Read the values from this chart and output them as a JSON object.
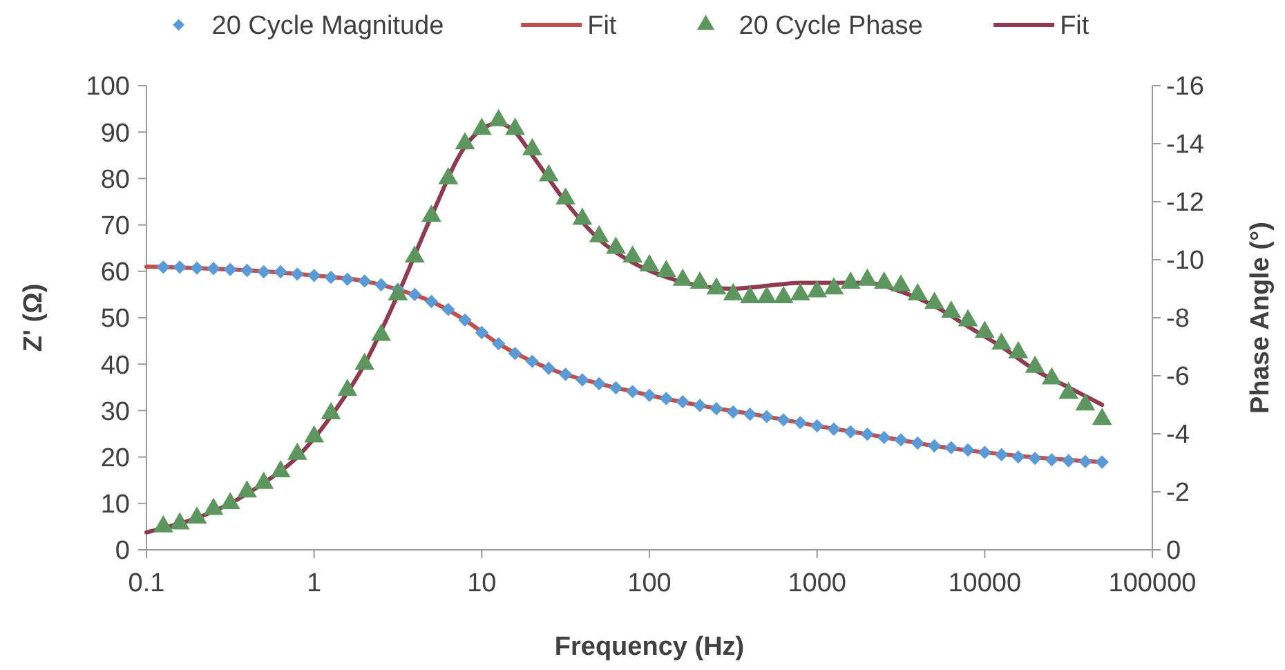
{
  "chart_data": {
    "type": "scatter",
    "xlabel": "Frequency (Hz)",
    "ylabel": "Z' (Ω)",
    "y2label": "Phase Angle (°)",
    "log": "x",
    "grid": false,
    "legend": "top",
    "xlim": [
      0.1,
      100000
    ],
    "xticks": [
      0.1,
      1,
      10,
      100,
      1000,
      10000,
      100000
    ],
    "ylim": [
      0,
      100
    ],
    "yticks": [
      0,
      10,
      20,
      30,
      40,
      50,
      60,
      70,
      80,
      90,
      100
    ],
    "y2lim": [
      0,
      -16
    ],
    "y2ticks": [
      0,
      -2,
      -4,
      -6,
      -8,
      -10,
      -12,
      -14,
      -16
    ],
    "series": [
      {
        "name": "20 Cycle Magnitude",
        "marker": "diamond",
        "color": "#5b9bd5",
        "axis": "y",
        "x": [
          0.126,
          0.158,
          0.2,
          0.251,
          0.316,
          0.398,
          0.501,
          0.631,
          0.794,
          1,
          1.26,
          1.58,
          2,
          2.51,
          3.16,
          3.98,
          5.01,
          6.31,
          7.94,
          10,
          12.6,
          15.8,
          20,
          25.1,
          31.6,
          39.8,
          50.1,
          63.1,
          79.4,
          100,
          126,
          158,
          200,
          251,
          316,
          398,
          501,
          631,
          794,
          1000,
          1259,
          1585,
          1995,
          2512,
          3162,
          3981,
          5012,
          6310,
          7943,
          10000,
          12589,
          15849,
          19953,
          25119,
          31623,
          39811,
          50119
        ],
        "values": [
          60.9,
          60.9,
          60.7,
          60.6,
          60.4,
          60.2,
          59.9,
          59.9,
          59.4,
          59.1,
          58.7,
          58.3,
          57.9,
          57.1,
          56.1,
          55.0,
          53.5,
          51.8,
          49.5,
          46.8,
          44.4,
          42.3,
          40.6,
          39.1,
          37.8,
          36.6,
          35.8,
          34.9,
          34.1,
          33.3,
          32.6,
          31.9,
          31.1,
          30.4,
          29.7,
          29.2,
          28.7,
          28.0,
          27.4,
          26.7,
          26.0,
          25.4,
          24.9,
          24.2,
          23.7,
          23.0,
          22.4,
          22.0,
          21.5,
          21.0,
          20.5,
          20.0,
          19.7,
          19.4,
          19.2,
          19.0,
          18.9
        ]
      },
      {
        "name": "Fit",
        "type": "line",
        "marker": "none",
        "color": "#c0504d",
        "axis": "y",
        "x": [
          0.1,
          0.316,
          1,
          2,
          3.16,
          5.01,
          7.94,
          12.6,
          20,
          31.6,
          50.1,
          100,
          200,
          501,
          1000,
          2000,
          5012,
          10000,
          20000,
          50119
        ],
        "values": [
          61,
          60.4,
          59.1,
          57.9,
          56.1,
          53.5,
          49.5,
          44.4,
          40.6,
          37.8,
          35.8,
          33.3,
          31.1,
          28.7,
          26.7,
          24.9,
          22.4,
          21.0,
          19.9,
          18.9
        ]
      },
      {
        "name": "20 Cycle Phase",
        "marker": "triangle",
        "color": "#5e9660",
        "axis": "y2",
        "x": [
          0.126,
          0.158,
          0.2,
          0.251,
          0.316,
          0.398,
          0.501,
          0.631,
          0.794,
          1,
          1.26,
          1.58,
          2,
          2.51,
          3.16,
          3.98,
          5.01,
          6.31,
          7.94,
          10,
          12.6,
          15.8,
          20,
          25.1,
          31.6,
          39.8,
          50.1,
          63.1,
          79.4,
          100,
          126,
          158,
          200,
          251,
          316,
          398,
          501,
          631,
          794,
          1000,
          1259,
          1585,
          1995,
          2512,
          3162,
          3981,
          5012,
          6310,
          7943,
          10000,
          12589,
          15849,
          19953,
          25119,
          31623,
          39811,
          50119
        ],
        "values": [
          -0.8,
          -0.9,
          -1.1,
          -1.4,
          -1.6,
          -2.0,
          -2.3,
          -2.7,
          -3.3,
          -3.9,
          -4.7,
          -5.5,
          -6.4,
          -7.4,
          -8.8,
          -10.1,
          -11.5,
          -12.8,
          -14.0,
          -14.5,
          -14.8,
          -14.5,
          -13.8,
          -12.9,
          -12.1,
          -11.4,
          -10.8,
          -10.4,
          -10.1,
          -9.8,
          -9.6,
          -9.3,
          -9.2,
          -9.0,
          -8.8,
          -8.7,
          -8.7,
          -8.7,
          -8.8,
          -8.9,
          -9.0,
          -9.2,
          -9.3,
          -9.2,
          -9.1,
          -8.8,
          -8.5,
          -8.2,
          -7.9,
          -7.5,
          -7.1,
          -6.8,
          -6.3,
          -5.9,
          -5.4,
          -5.0,
          -4.5
        ]
      },
      {
        "name": "Fit",
        "type": "line",
        "marker": "none",
        "color": "#8e3b50",
        "axis": "y2",
        "x": [
          0.1,
          0.2,
          0.316,
          0.5,
          0.794,
          1.26,
          2,
          3.16,
          5.01,
          7.94,
          10,
          12.6,
          15.8,
          20,
          31.6,
          50.1,
          79.4,
          126,
          200,
          316,
          501,
          794,
          1259,
          1995,
          3162,
          5012,
          7943,
          12589,
          19953,
          31623,
          50119
        ],
        "values": [
          -0.6,
          -1.1,
          -1.6,
          -2.3,
          -3.2,
          -4.6,
          -6.4,
          -8.8,
          -11.5,
          -13.9,
          -14.5,
          -14.7,
          -14.4,
          -13.6,
          -12.0,
          -10.7,
          -9.9,
          -9.4,
          -9.1,
          -9.0,
          -9.1,
          -9.2,
          -9.2,
          -9.2,
          -8.9,
          -8.4,
          -7.7,
          -7.0,
          -6.2,
          -5.6,
          -5.0
        ]
      }
    ]
  }
}
